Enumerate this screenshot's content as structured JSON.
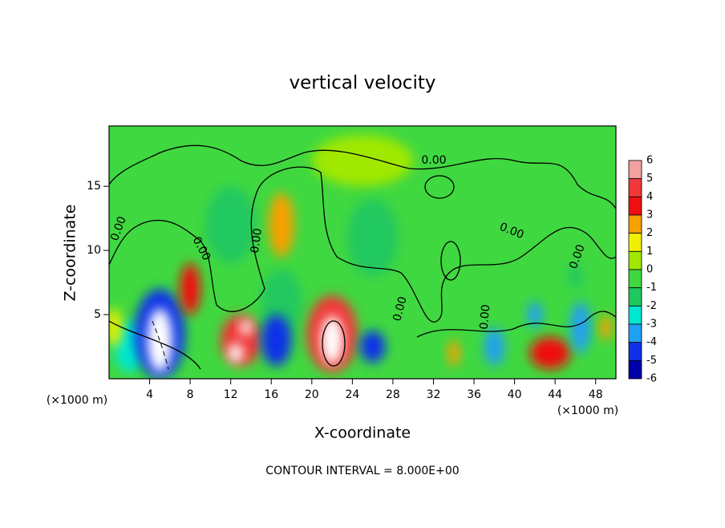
{
  "chart_data": {
    "type": "contour",
    "title": "vertical velocity",
    "x_label": "X-coordinate",
    "y_label": "Z-coordinate",
    "x_unit": "(×1000 m)",
    "x_unit_right": "(×1000 m)",
    "footer": "CONTOUR INTERVAL = 8.000E+00",
    "contour_labels": [
      "0.00",
      "0.00",
      "0.00",
      "0.00",
      "0.00",
      "0.00",
      "0.00",
      "0.00"
    ],
    "xlim": [
      0,
      50
    ],
    "ylim": [
      0,
      19.7
    ],
    "xticks": [
      4,
      8,
      12,
      16,
      20,
      24,
      28,
      32,
      36,
      40,
      44,
      48
    ],
    "yticks": [
      5,
      10,
      15
    ],
    "background_color": "#40d840",
    "extreme_color": "#ffffff",
    "colorbar": {
      "levels": [
        6,
        5,
        4,
        3,
        2,
        1,
        0,
        -1,
        -2,
        -3,
        -4,
        -5,
        -6
      ],
      "colors": [
        "#f4a0a0",
        "#f03838",
        "#f01010",
        "#f8a000",
        "#f0f000",
        "#a0e800",
        "#40d840",
        "#20c860",
        "#00e8d0",
        "#20a0f0",
        "#1030e8",
        "#0000a8",
        "#7000a8"
      ]
    },
    "field": [
      {
        "x": 25,
        "z": 17,
        "w": 10,
        "h": 4,
        "value": 0.5
      },
      {
        "x": 12,
        "z": 12,
        "w": 5,
        "h": 6,
        "value": -1.5
      },
      {
        "x": 26,
        "z": 11,
        "w": 5,
        "h": 6,
        "value": -1.5
      },
      {
        "x": 2,
        "z": 2.5,
        "w": 3,
        "h": 4,
        "value": -2.5
      },
      {
        "x": 0.5,
        "z": 4,
        "w": 1.5,
        "h": 3,
        "value": 1.5
      },
      {
        "x": 5,
        "z": 3.5,
        "w": 5,
        "h": 7,
        "value": -4.5
      },
      {
        "x": 5,
        "z": 3,
        "w": 2.5,
        "h": 5,
        "value": -8
      },
      {
        "x": 8,
        "z": 7,
        "w": 2,
        "h": 4,
        "value": 3.5
      },
      {
        "x": 13,
        "z": 3,
        "w": 4,
        "h": 4,
        "value": 4.5
      },
      {
        "x": 12.5,
        "z": 2,
        "w": 1.5,
        "h": 1.5,
        "value": 8
      },
      {
        "x": 13.5,
        "z": 4,
        "w": 1.2,
        "h": 1.2,
        "value": 8
      },
      {
        "x": 17,
        "z": 6,
        "w": 4,
        "h": 5,
        "value": -2
      },
      {
        "x": 16.5,
        "z": 3,
        "w": 3,
        "h": 4,
        "value": -4.5
      },
      {
        "x": 17,
        "z": 12,
        "w": 2.5,
        "h": 5,
        "value": 2.5
      },
      {
        "x": 22,
        "z": 3.5,
        "w": 5,
        "h": 6,
        "value": 4.5
      },
      {
        "x": 22,
        "z": 3,
        "w": 2.2,
        "h": 3.8,
        "value": 8
      },
      {
        "x": 26,
        "z": 2.5,
        "w": 2.5,
        "h": 2.5,
        "value": -4.5
      },
      {
        "x": 34,
        "z": 2,
        "w": 1.2,
        "h": 2,
        "value": 2.5
      },
      {
        "x": 38,
        "z": 2.5,
        "w": 2,
        "h": 3,
        "value": -3.5
      },
      {
        "x": 42,
        "z": 5,
        "w": 1.5,
        "h": 2,
        "value": -3.5
      },
      {
        "x": 43.5,
        "z": 2,
        "w": 4,
        "h": 2.5,
        "value": 3.5
      },
      {
        "x": 46.5,
        "z": 4,
        "w": 2,
        "h": 4,
        "value": -3.5
      },
      {
        "x": 46,
        "z": 8,
        "w": 1.5,
        "h": 2,
        "value": -1.5
      },
      {
        "x": 49,
        "z": 4,
        "w": 1.2,
        "h": 2,
        "value": 2
      }
    ]
  }
}
